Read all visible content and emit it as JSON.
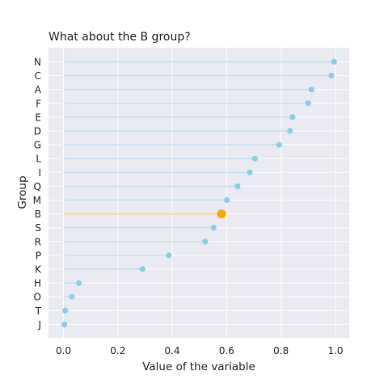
{
  "chart_data": {
    "type": "lollipop",
    "title": "What about the B group?",
    "xlabel": "Value of the variable",
    "ylabel": "Group",
    "xlim": [
      -0.05,
      1.05
    ],
    "xticks": [
      "0.0",
      "0.2",
      "0.4",
      "0.6",
      "0.8",
      "1.0"
    ],
    "grid": true,
    "highlight": "B",
    "categories": [
      "N",
      "C",
      "A",
      "F",
      "E",
      "D",
      "G",
      "L",
      "I",
      "Q",
      "M",
      "B",
      "S",
      "R",
      "P",
      "K",
      "H",
      "O",
      "T",
      "J"
    ],
    "values": [
      0.995,
      0.985,
      0.912,
      0.9,
      0.842,
      0.833,
      0.793,
      0.704,
      0.685,
      0.64,
      0.601,
      0.581,
      0.552,
      0.521,
      0.387,
      0.291,
      0.057,
      0.031,
      0.006,
      0.003
    ]
  },
  "colors": {
    "default_stem": "#bde0f2",
    "default_dot": "#87ceeb",
    "highlight_stem": "#fad8a0",
    "highlight_dot": "#ffa500",
    "background": "#eaeaf2",
    "grid": "#ffffff"
  }
}
